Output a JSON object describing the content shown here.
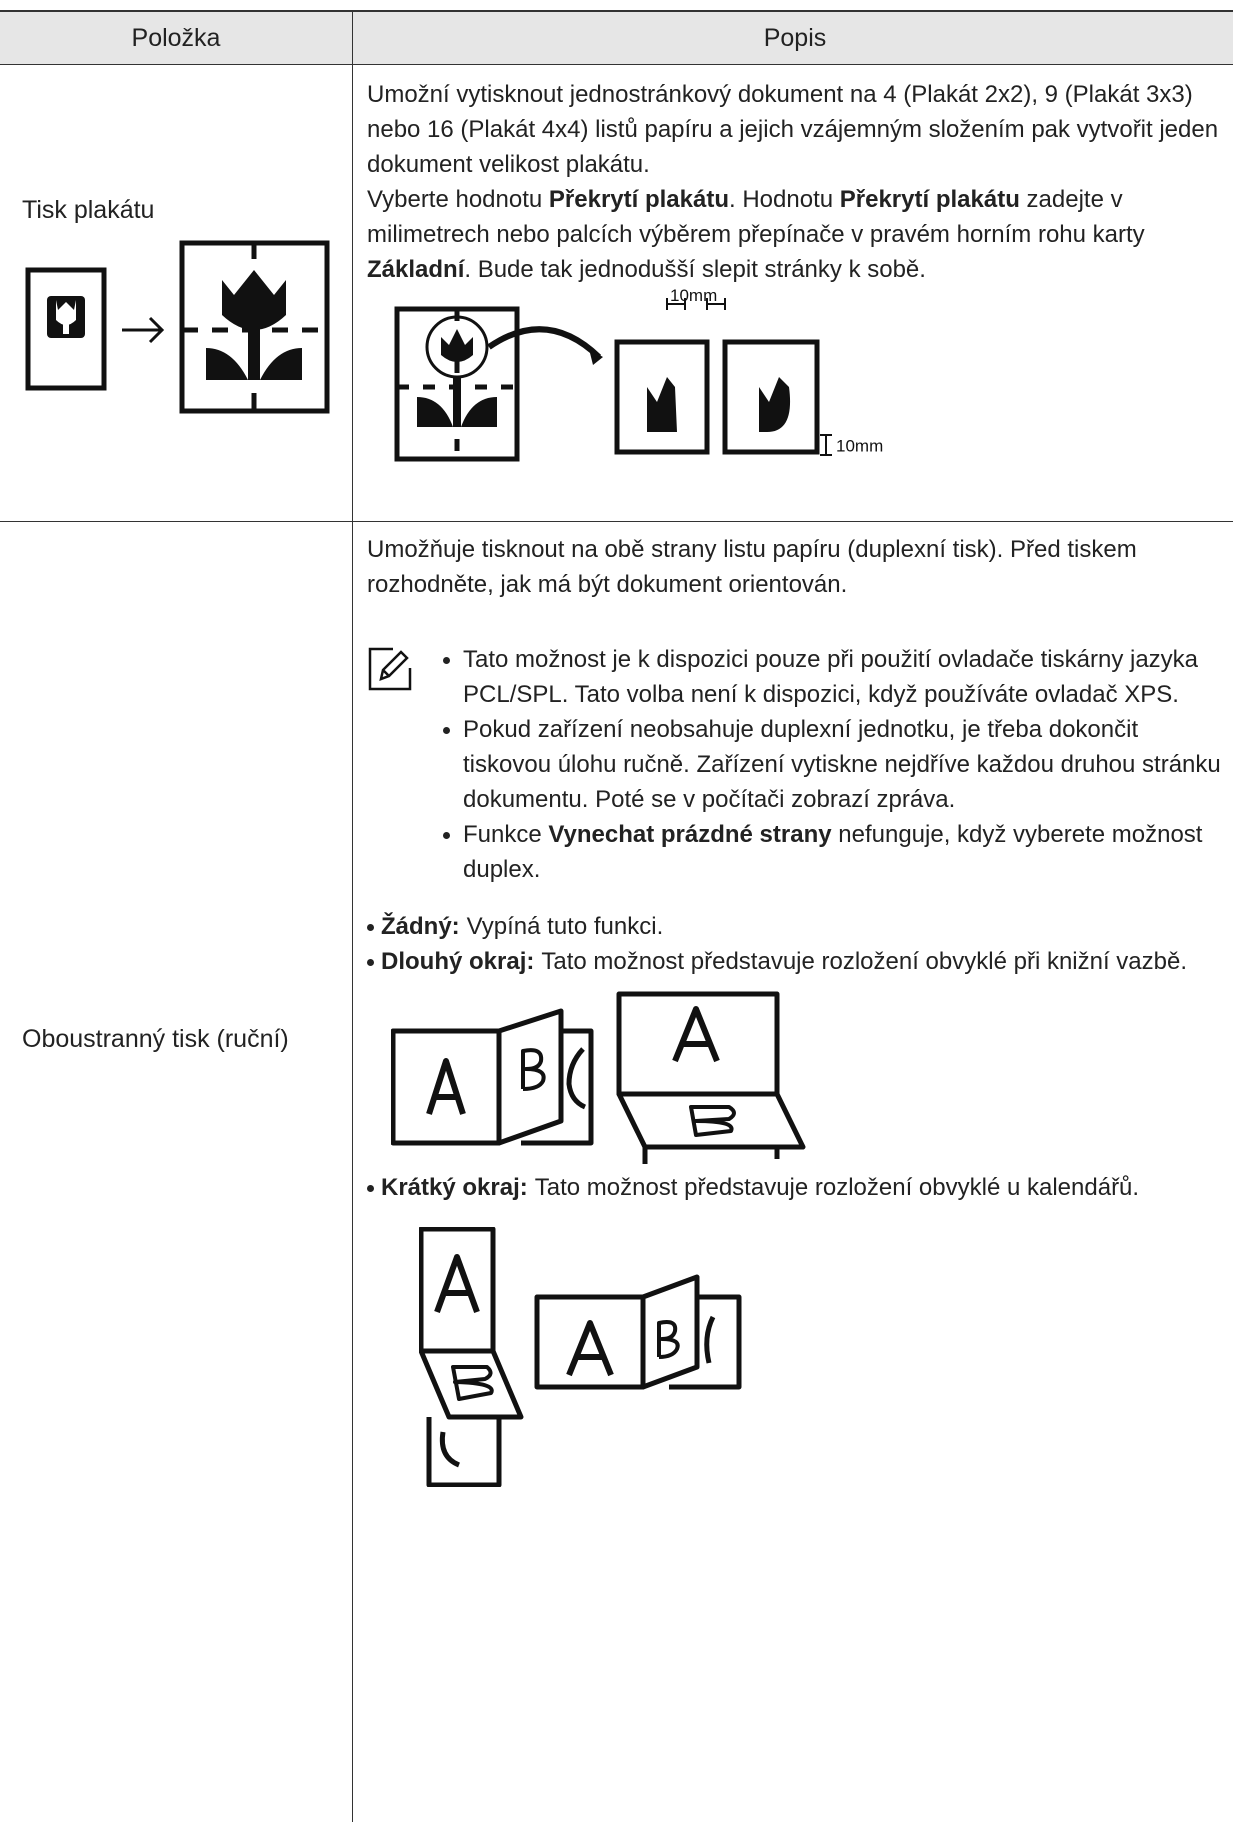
{
  "header": {
    "item": "Položka",
    "description": "Popis"
  },
  "rows": [
    {
      "item": "Tisk plakátu",
      "paragraphs": [
        [
          "Umožní vytisknout jednostránkový dokument na 4 (Plakát 2x2), 9 (Plakát 3x3) nebo 16 (Plakát 4x4) listů papíru a jejich vzájemným složením pak vytvořit jeden dokument velikost plakátu."
        ],
        [
          "Vyberte hodnotu ",
          {
            "text": "Překrytí plakátu",
            "bold": true
          },
          ". Hodnotu ",
          {
            "text": "Překrytí plakátu",
            "bold": true
          },
          " zadejte v milimetrech nebo palcích výběrem přepínače v pravém horním rohu karty ",
          {
            "text": "Základní",
            "bold": true
          },
          ". Bude tak jednodušší slepit stránky k sobě."
        ]
      ],
      "figure_labels": [
        "10mm",
        "10mm"
      ]
    },
    {
      "item": "Oboustranný tisk (ruční)",
      "paragraphs": [
        [
          "Umožňuje tisknout na obě strany listu papíru (duplexní tisk). Před tiskem rozhodněte, jak má být dokument orientován."
        ]
      ],
      "notes": [
        [
          "Tato možnost je k dispozici pouze při použití ovladače tiskárny jazyka PCL/SPL. Tato volba není k dispozici, když používáte ovladač XPS."
        ],
        [
          "Pokud zařízení neobsahuje duplexní jednotku, je třeba dokončit tiskovou úlohu ručně. Zařízení vytiskne nejdříve každou druhou stránku dokumentu. Poté se v počítači zobrazí zpráva."
        ],
        [
          "Funkce ",
          {
            "text": "Vynechat prázdné strany",
            "bold": true
          },
          " nefunguje, když vyberete možnost duplex."
        ]
      ],
      "options": [
        {
          "label": "Žádný:",
          "text": "Vypíná tuto funkci."
        },
        {
          "label": "Dlouhý okraj:",
          "text": "Tato možnost představuje rozložení obvyklé při knižní vazbě."
        },
        {
          "label": "Krátký okraj:",
          "text": "Tato možnost představuje rozložení obvyklé u kalendářů."
        }
      ]
    }
  ]
}
